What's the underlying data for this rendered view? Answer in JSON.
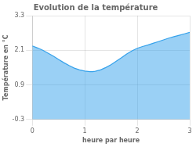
{
  "chart_data": {
    "type": "area",
    "title": "Evolution de la température",
    "xlabel": "heure par heure",
    "ylabel": "Température en °C",
    "x": [
      0.0,
      0.1,
      0.2,
      0.3,
      0.4,
      0.5,
      0.6,
      0.7,
      0.8,
      0.9,
      1.0,
      1.1,
      1.15,
      1.2,
      1.3,
      1.4,
      1.5,
      1.6,
      1.7,
      1.8,
      1.9,
      2.0,
      2.1,
      2.2,
      2.3,
      2.4,
      2.5,
      2.6,
      2.7,
      2.8,
      2.9,
      3.0
    ],
    "values": [
      2.25,
      2.18,
      2.1,
      2.0,
      1.9,
      1.78,
      1.67,
      1.57,
      1.48,
      1.42,
      1.38,
      1.36,
      1.36,
      1.37,
      1.42,
      1.5,
      1.6,
      1.72,
      1.84,
      1.97,
      2.08,
      2.17,
      2.23,
      2.28,
      2.34,
      2.4,
      2.46,
      2.52,
      2.57,
      2.62,
      2.67,
      2.72
    ],
    "xlim": [
      0,
      3
    ],
    "ylim": [
      -0.3,
      3.3
    ],
    "xticks": [
      0,
      1,
      2,
      3
    ],
    "yticks": [
      -0.3,
      0.9,
      2.1,
      3.3
    ],
    "grid": true
  }
}
